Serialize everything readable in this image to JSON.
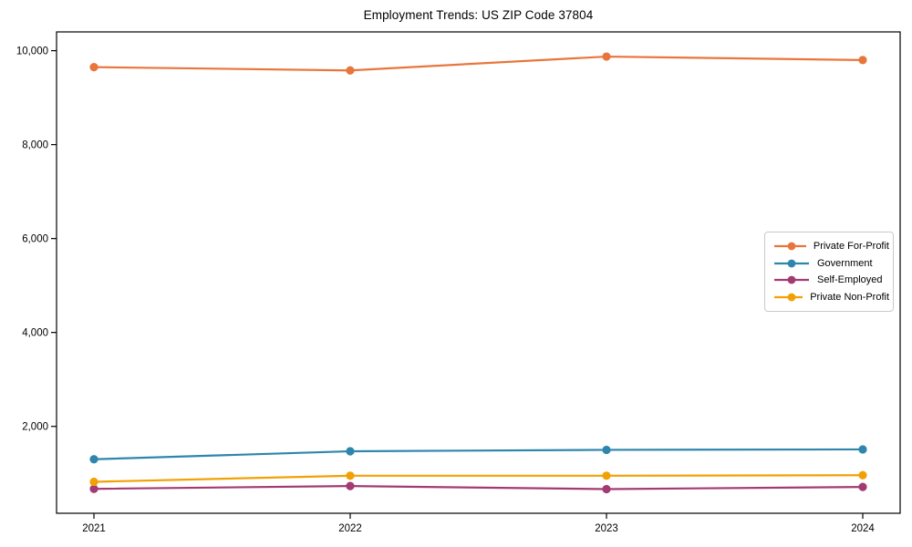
{
  "figure": {
    "background": "#ffffff",
    "spine_color": "#000000",
    "text_color": "#000000"
  },
  "axes": {
    "x_tick_labels": [
      "2021",
      "2022",
      "2023",
      "2024"
    ],
    "y_tick_labels": [
      "2,000",
      "4,000",
      "6,000",
      "8,000",
      "10,000"
    ]
  },
  "chart_data": {
    "type": "line",
    "title": "Employment Trends: US ZIP Code 37804",
    "xlabel": "",
    "ylabel": "",
    "x": [
      2021,
      2022,
      2023,
      2024
    ],
    "series": [
      {
        "name": "Private For-Profit",
        "color": "#E8763C",
        "values": [
          9650,
          9580,
          9875,
          9800
        ]
      },
      {
        "name": "Government",
        "color": "#2E86AB",
        "values": [
          1300,
          1470,
          1500,
          1510
        ]
      },
      {
        "name": "Self-Employed",
        "color": "#A23B72",
        "values": [
          670,
          730,
          665,
          710
        ]
      },
      {
        "name": "Private Non-Profit",
        "color": "#F2A104",
        "values": [
          820,
          950,
          950,
          960
        ]
      }
    ],
    "yticks": [
      2000,
      4000,
      6000,
      8000,
      10000
    ],
    "ylim": [
      150,
      10400
    ],
    "grid": false,
    "marker": "o",
    "legend_position": "center-right"
  }
}
